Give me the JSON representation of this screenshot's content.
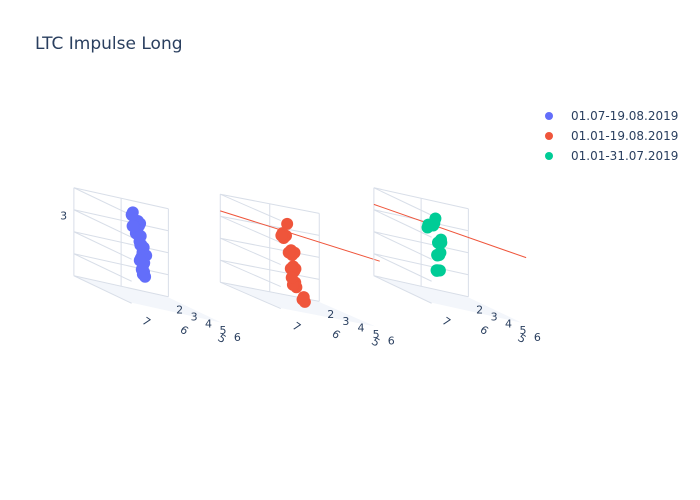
{
  "title": "LTC Impulse Long",
  "legend": [
    {
      "label": "01.07-19.08.2019",
      "color": "#636efa"
    },
    {
      "label": "01.01-19.08.2019",
      "color": "#ef553b"
    },
    {
      "label": "01.01-31.07.2019",
      "color": "#00cc96"
    }
  ],
  "chart_data": [
    {
      "type": "scatter3d",
      "series": [
        {
          "name": "01.07-19.08.2019",
          "color": "#636efa"
        }
      ],
      "x_ticks": [
        "7",
        "6",
        "5"
      ],
      "y_ticks": [
        "2",
        "3",
        "4",
        "5",
        "6"
      ],
      "z_ticks": [
        "3"
      ],
      "points": [
        [
          7.2,
          5.8,
          3.9
        ],
        [
          7.0,
          5.2,
          3.7
        ],
        [
          6.8,
          4.6,
          3.8
        ],
        [
          6.6,
          3.9,
          3.6
        ],
        [
          6.4,
          3.2,
          3.9
        ],
        [
          6.2,
          2.6,
          3.7
        ],
        [
          6.0,
          2.1,
          3.6
        ],
        [
          7.1,
          5.5,
          3.1
        ],
        [
          6.9,
          4.9,
          3.3
        ],
        [
          6.7,
          4.2,
          3.2
        ],
        [
          6.5,
          3.6,
          3.4
        ],
        [
          6.3,
          3.0,
          3.3
        ],
        [
          6.1,
          2.4,
          3.2
        ],
        [
          7.0,
          5.7,
          2.6
        ],
        [
          6.8,
          5.0,
          2.8
        ],
        [
          6.6,
          4.4,
          2.5
        ],
        [
          6.4,
          3.8,
          2.7
        ],
        [
          6.2,
          3.2,
          2.6
        ],
        [
          6.0,
          2.7,
          2.9
        ],
        [
          6.9,
          5.3,
          2.2
        ],
        [
          6.7,
          4.7,
          2.0
        ],
        [
          6.5,
          4.1,
          2.3
        ],
        [
          6.3,
          3.5,
          2.1
        ],
        [
          6.1,
          2.9,
          1.9
        ],
        [
          6.8,
          5.1,
          1.6
        ],
        [
          6.6,
          4.5,
          1.7
        ],
        [
          6.4,
          3.9,
          1.5
        ],
        [
          6.2,
          3.3,
          1.6
        ]
      ]
    },
    {
      "type": "scatter3d",
      "series": [
        {
          "name": "01.01-19.08.2019",
          "color": "#ef553b"
        }
      ],
      "x_ticks": [
        "7",
        "6",
        "5"
      ],
      "y_ticks": [
        "2",
        "3",
        "4",
        "5",
        "6"
      ],
      "z_ticks": [],
      "points": [
        [
          7.3,
          5.9,
          4.1
        ],
        [
          7.1,
          5.3,
          3.5
        ],
        [
          6.9,
          4.7,
          3.4
        ],
        [
          6.7,
          4.1,
          3.2
        ],
        [
          6.5,
          3.5,
          3.3
        ],
        [
          6.3,
          2.9,
          3.1
        ],
        [
          7.0,
          5.6,
          2.9
        ],
        [
          6.8,
          5.0,
          2.8
        ],
        [
          6.6,
          4.4,
          2.6
        ],
        [
          6.4,
          3.8,
          2.7
        ],
        [
          6.2,
          3.2,
          2.5
        ],
        [
          6.0,
          2.6,
          2.4
        ],
        [
          6.9,
          5.4,
          2.2
        ],
        [
          6.7,
          4.8,
          2.0
        ],
        [
          6.5,
          4.2,
          2.1
        ],
        [
          6.3,
          3.6,
          1.9
        ],
        [
          6.1,
          3.0,
          1.8
        ],
        [
          6.8,
          5.2,
          1.4
        ],
        [
          6.6,
          4.6,
          1.5
        ],
        [
          6.4,
          4.0,
          1.3
        ],
        [
          6.2,
          3.4,
          1.2
        ],
        [
          6.0,
          2.8,
          1.4
        ],
        [
          6.7,
          5.5,
          0.9
        ],
        [
          6.5,
          4.9,
          1.0
        ],
        [
          6.3,
          4.3,
          0.8
        ]
      ]
    },
    {
      "type": "scatter3d",
      "series": [
        {
          "name": "01.01-31.07.2019",
          "color": "#00cc96"
        }
      ],
      "x_ticks": [
        "7",
        "6",
        "5"
      ],
      "y_ticks": [
        "2",
        "3",
        "4",
        "5",
        "6"
      ],
      "z_ticks": [],
      "points": [
        [
          7.4,
          6.0,
          4.1
        ],
        [
          7.2,
          5.4,
          3.8
        ],
        [
          7.0,
          4.8,
          3.6
        ],
        [
          6.9,
          4.2,
          3.5
        ],
        [
          6.7,
          3.7,
          3.4
        ],
        [
          6.5,
          3.1,
          3.2
        ],
        [
          7.1,
          5.6,
          3.2
        ],
        [
          6.9,
          5.1,
          3.0
        ],
        [
          6.7,
          4.5,
          2.9
        ],
        [
          6.5,
          3.9,
          2.8
        ],
        [
          6.3,
          3.3,
          2.7
        ],
        [
          6.1,
          2.8,
          2.6
        ],
        [
          7.0,
          5.3,
          2.6
        ],
        [
          6.8,
          4.7,
          2.4
        ],
        [
          6.6,
          4.1,
          2.3
        ],
        [
          6.4,
          3.5,
          2.2
        ],
        [
          6.2,
          3.0,
          2.1
        ],
        [
          6.9,
          5.0,
          1.8
        ],
        [
          6.7,
          4.4,
          1.7
        ],
        [
          6.5,
          3.8,
          1.6
        ],
        [
          6.3,
          3.2,
          1.5
        ],
        [
          6.1,
          2.7,
          1.4
        ]
      ]
    }
  ]
}
